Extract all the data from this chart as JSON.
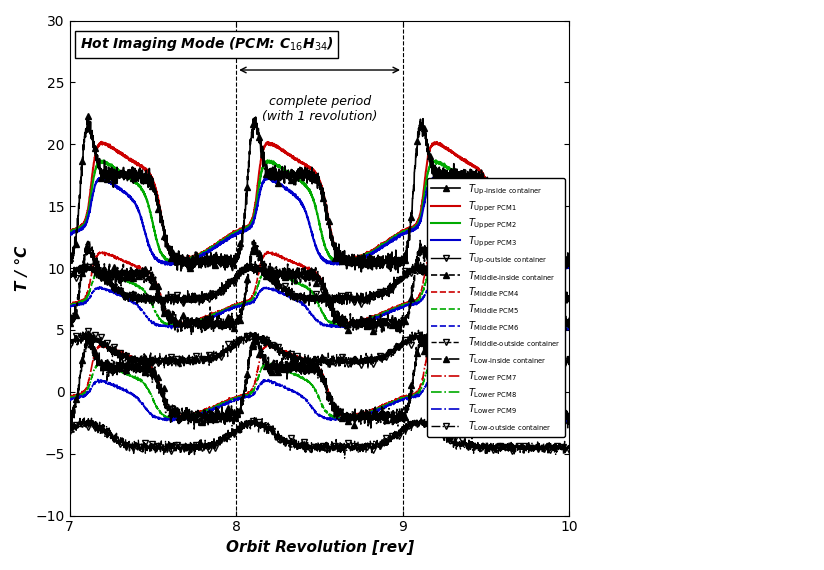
{
  "title": "Hot Imaging Mode (PCM: C$_{16}$H$_{34}$)",
  "xlabel": "Orbit Revolution [rev]",
  "ylabel": "T / °C",
  "xlim": [
    7,
    10
  ],
  "ylim": [
    -10,
    30
  ],
  "xticks": [
    7,
    8,
    9,
    10
  ],
  "yticks": [
    -10,
    -5,
    0,
    5,
    10,
    15,
    20,
    25,
    30
  ],
  "period_x1": 8.0,
  "period_x2": 9.0,
  "period_label": "complete period\n(with 1 revolution)",
  "legend_entries": [
    {
      "label": "T_Up-inside container",
      "color": "#000000",
      "ls": "-",
      "lw": 1.2,
      "marker": "^",
      "ms": 4
    },
    {
      "label": "T_Upper PCM1",
      "color": "#cc0000",
      "ls": "-",
      "lw": 1.5,
      "marker": null,
      "ms": 0
    },
    {
      "label": "T_Upper PCM2",
      "color": "#00aa00",
      "ls": "-",
      "lw": 1.5,
      "marker": null,
      "ms": 0
    },
    {
      "label": "T_Upper PCM3",
      "color": "#0000cc",
      "ls": "-",
      "lw": 1.5,
      "marker": null,
      "ms": 0
    },
    {
      "label": "T_Up-outside container",
      "color": "#000000",
      "ls": "-",
      "lw": 1.0,
      "marker": "v",
      "ms": 4
    },
    {
      "label": "T_Middle-inside container",
      "color": "#000000",
      "ls": "--",
      "lw": 1.2,
      "marker": "^",
      "ms": 4
    },
    {
      "label": "T_Middle PCM4",
      "color": "#cc0000",
      "ls": "--",
      "lw": 1.2,
      "marker": null,
      "ms": 0
    },
    {
      "label": "T_Middle PCM5",
      "color": "#00aa00",
      "ls": "--",
      "lw": 1.2,
      "marker": null,
      "ms": 0
    },
    {
      "label": "T_Middle PCM6",
      "color": "#0000cc",
      "ls": "--",
      "lw": 1.2,
      "marker": null,
      "ms": 0
    },
    {
      "label": "T_Middle-outside container",
      "color": "#000000",
      "ls": "--",
      "lw": 1.0,
      "marker": "v",
      "ms": 4
    },
    {
      "label": "T_Low-inside container",
      "color": "#000000",
      "ls": "-.",
      "lw": 1.2,
      "marker": "^",
      "ms": 4
    },
    {
      "label": "T_Lower PCM7",
      "color": "#cc0000",
      "ls": "-.",
      "lw": 1.2,
      "marker": null,
      "ms": 0
    },
    {
      "label": "T_Lower PCM8",
      "color": "#00aa00",
      "ls": "-.",
      "lw": 1.2,
      "marker": null,
      "ms": 0
    },
    {
      "label": "T_Lower PCM9",
      "color": "#0000cc",
      "ls": "-.",
      "lw": 1.2,
      "marker": null,
      "ms": 0
    },
    {
      "label": "T_Low-outside container",
      "color": "#000000",
      "ls": "-.",
      "lw": 1.0,
      "marker": "v",
      "ms": 4
    }
  ]
}
